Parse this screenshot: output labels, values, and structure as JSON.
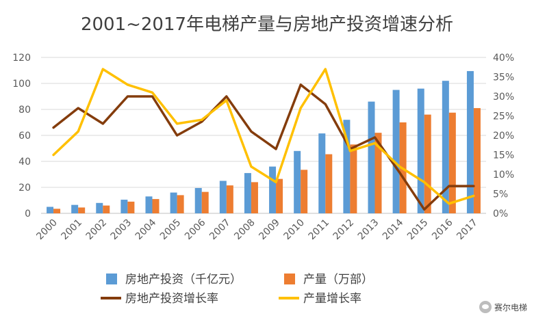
{
  "chart_data": {
    "type": "bar",
    "title": "2001~2017年电梯产量与房地产投资增速分析",
    "categories": [
      "2000",
      "2001",
      "2002",
      "2003",
      "2004",
      "2005",
      "2006",
      "2007",
      "2008",
      "2009",
      "2010",
      "2011",
      "2012",
      "2013",
      "2014",
      "2015",
      "2016",
      "2017"
    ],
    "y_left": {
      "ylim": [
        0,
        120
      ],
      "ticks": [
        "0",
        "20",
        "40",
        "60",
        "80",
        "100",
        "120"
      ]
    },
    "y_right": {
      "ylim": [
        0,
        40
      ],
      "ticks": [
        "0%",
        "5%",
        "10%",
        "15%",
        "20%",
        "25%",
        "30%",
        "35%",
        "40%"
      ]
    },
    "bar_series": [
      {
        "name": "房地产投资（千亿元）",
        "axis": "left",
        "color": "#5b9bd5",
        "values": [
          5,
          6.5,
          8,
          10.5,
          13,
          16,
          19.5,
          25,
          31,
          36,
          48,
          61.5,
          72,
          86,
          95,
          96,
          102,
          109.5
        ]
      },
      {
        "name": "产量（万部）",
        "axis": "left",
        "color": "#ed7d31",
        "values": [
          3.5,
          4.5,
          6,
          9,
          11,
          14,
          16.5,
          21.5,
          24,
          26.5,
          33.5,
          45.5,
          53,
          62,
          70,
          76,
          77.5,
          81
        ]
      }
    ],
    "line_series": [
      {
        "name": "房地产投资增长率",
        "axis": "right",
        "color": "#843c0c",
        "values": [
          22,
          27,
          23,
          30,
          30,
          20,
          23.5,
          30,
          21,
          16.5,
          33,
          28,
          16.5,
          19.5,
          10.5,
          1,
          7,
          7
        ]
      },
      {
        "name": "产量增长率",
        "axis": "right",
        "color": "#ffc000",
        "values": [
          15,
          21,
          37,
          33,
          31,
          23,
          24,
          29,
          12,
          8,
          27,
          37,
          16,
          18,
          12,
          8,
          2.5,
          4.5
        ]
      }
    ],
    "grid": true,
    "legend_position": "bottom"
  },
  "watermark": {
    "text": "赛尔电梯"
  }
}
